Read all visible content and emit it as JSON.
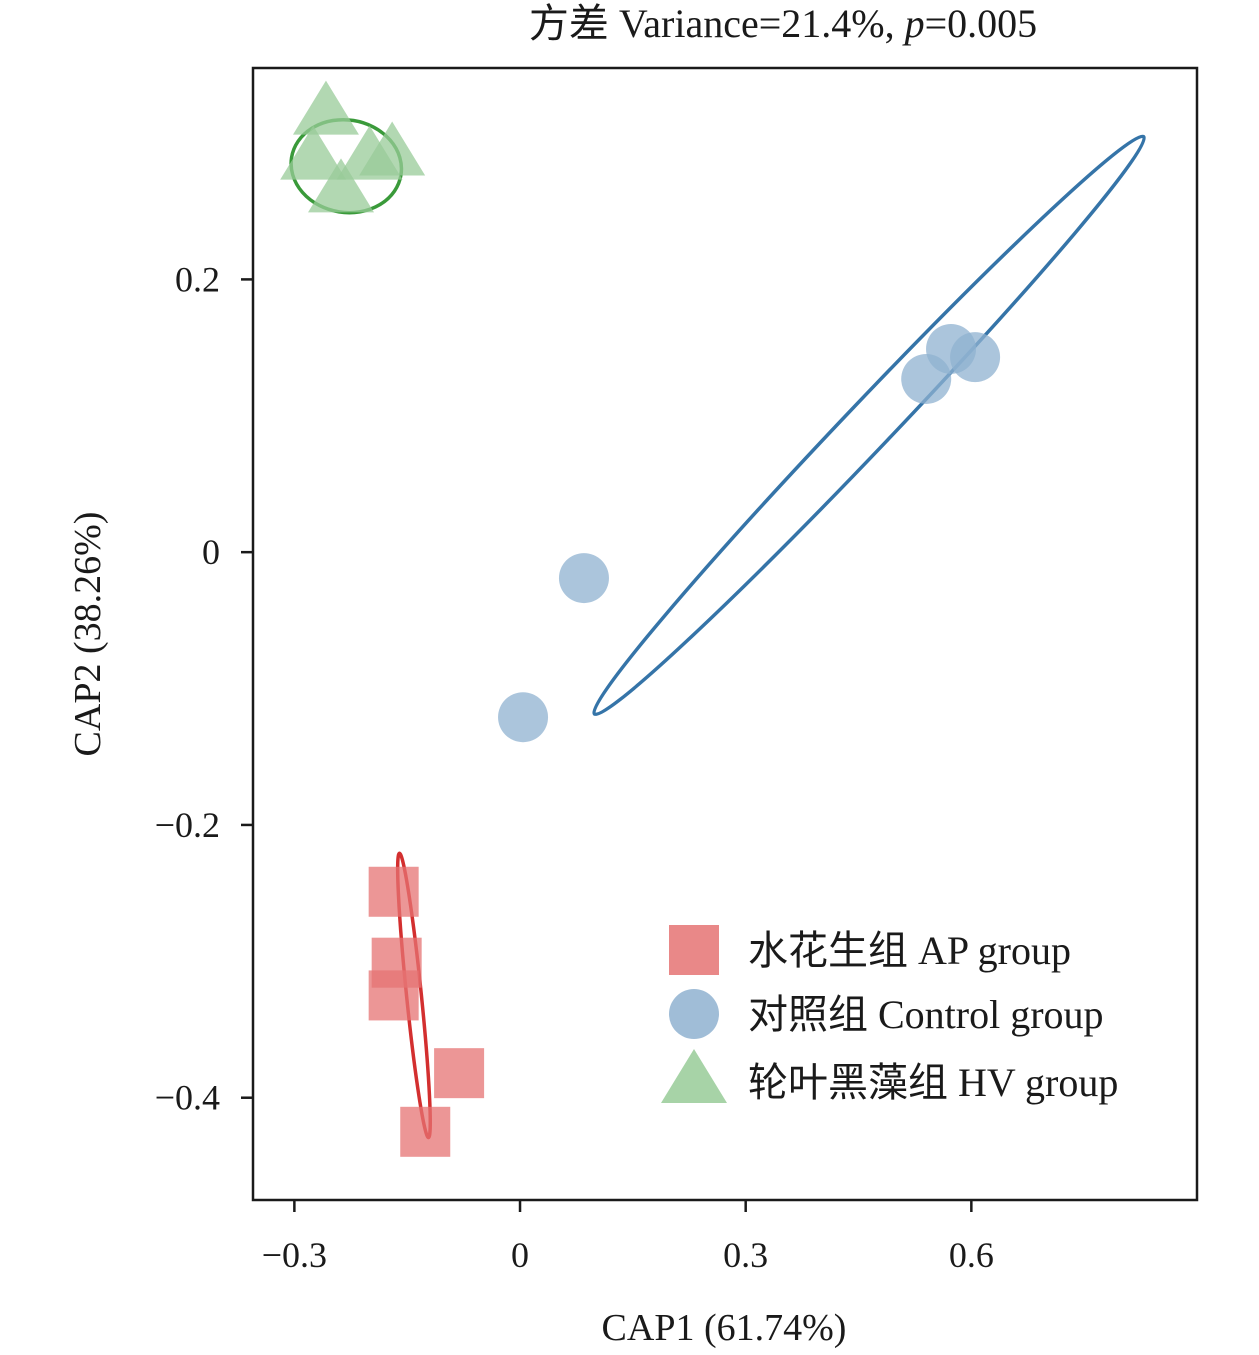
{
  "chart_data": {
    "type": "scatter",
    "title": {
      "prefix": "方差 Variance=21.4%, ",
      "p_symbol": "p",
      "p_value": "=0.005"
    },
    "xlabel": "CAP1 (61.74%)",
    "ylabel": "CAP2 (38.26%)",
    "xlim": [
      -0.355,
      0.9
    ],
    "ylim": [
      -0.475,
      0.355
    ],
    "xticks": [
      {
        "value": -0.3,
        "label": "−0.3"
      },
      {
        "value": 0,
        "label": "0"
      },
      {
        "value": 0.3,
        "label": "0.3"
      },
      {
        "value": 0.6,
        "label": "0.6"
      }
    ],
    "yticks": [
      {
        "value": 0.2,
        "label": "0.2"
      },
      {
        "value": 0,
        "label": "0"
      },
      {
        "value": -0.2,
        "label": "−0.2"
      },
      {
        "value": -0.4,
        "label": "−0.4"
      }
    ],
    "grid": false,
    "legend_position": "bottom-right",
    "series": [
      {
        "name": "水花生组 AP group",
        "marker": "square",
        "color": "#e57373",
        "ellipse_color": "#d32f2f",
        "points": [
          {
            "x": -0.168,
            "y": -0.249
          },
          {
            "x": -0.164,
            "y": -0.301
          },
          {
            "x": -0.168,
            "y": -0.325
          },
          {
            "x": -0.081,
            "y": -0.382
          },
          {
            "x": -0.126,
            "y": -0.425
          }
        ],
        "ellipse": {
          "cx": -0.141,
          "cy": -0.325,
          "rx": 0.106,
          "ry": 0.0095,
          "angle_deg": -79.5
        }
      },
      {
        "name": "对照组 Control group",
        "marker": "circle",
        "color": "#8fb2d0",
        "ellipse_color": "#3574a8",
        "points": [
          {
            "x": 0.573,
            "y": 0.149
          },
          {
            "x": 0.605,
            "y": 0.143
          },
          {
            "x": 0.54,
            "y": 0.127
          },
          {
            "x": 0.085,
            "y": -0.019
          },
          {
            "x": 0.004,
            "y": -0.121
          }
        ],
        "ellipse": {
          "cx": 0.464,
          "cy": 0.093,
          "rx": 0.422,
          "ry": 0.019,
          "angle_deg": 30.1
        }
      },
      {
        "name": "轮叶黑藻组 HV group",
        "marker": "triangle",
        "color": "#98cb98",
        "ellipse_color": "#3a9a3a",
        "points": [
          {
            "x": -0.258,
            "y": 0.323
          },
          {
            "x": -0.275,
            "y": 0.29
          },
          {
            "x": -0.2,
            "y": 0.29
          },
          {
            "x": -0.17,
            "y": 0.293
          },
          {
            "x": -0.238,
            "y": 0.266
          }
        ],
        "ellipse": {
          "cx": -0.231,
          "cy": 0.283,
          "rx": 0.073,
          "ry": 0.034,
          "angle_deg": -5
        }
      }
    ]
  }
}
